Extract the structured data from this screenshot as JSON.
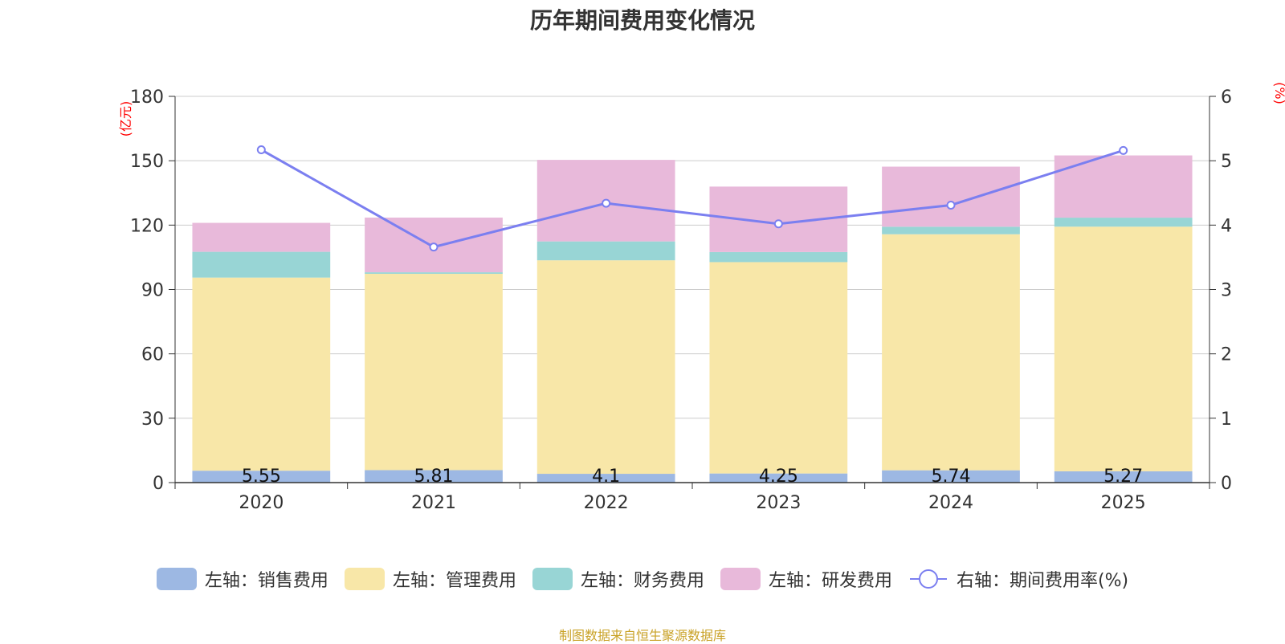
{
  "chart_data": {
    "type": "bar",
    "title": "历年期间费用变化情况",
    "categories": [
      "2020",
      "2021",
      "2022",
      "2023",
      "2024",
      "2025"
    ],
    "left_axis": {
      "unit_label": "(亿元)",
      "range": [
        0,
        180
      ],
      "ticks": [
        "0",
        "30",
        "60",
        "90",
        "120",
        "150",
        "180"
      ]
    },
    "right_axis": {
      "unit_label": "(%)",
      "range": [
        0,
        6
      ],
      "ticks": [
        "0",
        "1",
        "2",
        "3",
        "4",
        "5",
        "6"
      ]
    },
    "grid": true,
    "stacked": true,
    "series": [
      {
        "name": "左轴：销售费用",
        "axis": "left",
        "type": "bar",
        "color": "#9db8e3",
        "values": [
          5.55,
          5.81,
          4.1,
          4.25,
          5.74,
          5.27
        ],
        "labels": [
          "5.55",
          "5.81",
          "4.1",
          "4.25",
          "5.74",
          "5.27"
        ]
      },
      {
        "name": "左轴：管理费用",
        "axis": "left",
        "type": "bar",
        "color": "#f8e7a8",
        "values": [
          90.0,
          91.5,
          99.5,
          98.5,
          110.0,
          114.0
        ]
      },
      {
        "name": "左轴：财务费用",
        "axis": "left",
        "type": "bar",
        "color": "#98d5d5",
        "values": [
          12.0,
          0.7,
          8.8,
          4.7,
          3.5,
          4.2
        ]
      },
      {
        "name": "左轴：研发费用",
        "axis": "left",
        "type": "bar",
        "color": "#e8b9da",
        "values": [
          13.5,
          25.5,
          38.0,
          30.5,
          28.0,
          29.0
        ]
      },
      {
        "name": "右轴：期间费用率(%)",
        "axis": "right",
        "type": "line",
        "color": "#7b7ff0",
        "values": [
          5.17,
          3.66,
          4.34,
          4.02,
          4.31,
          5.16
        ]
      }
    ],
    "legend_position": "bottom-center"
  },
  "footnote": "制图数据来自恒生聚源数据库"
}
